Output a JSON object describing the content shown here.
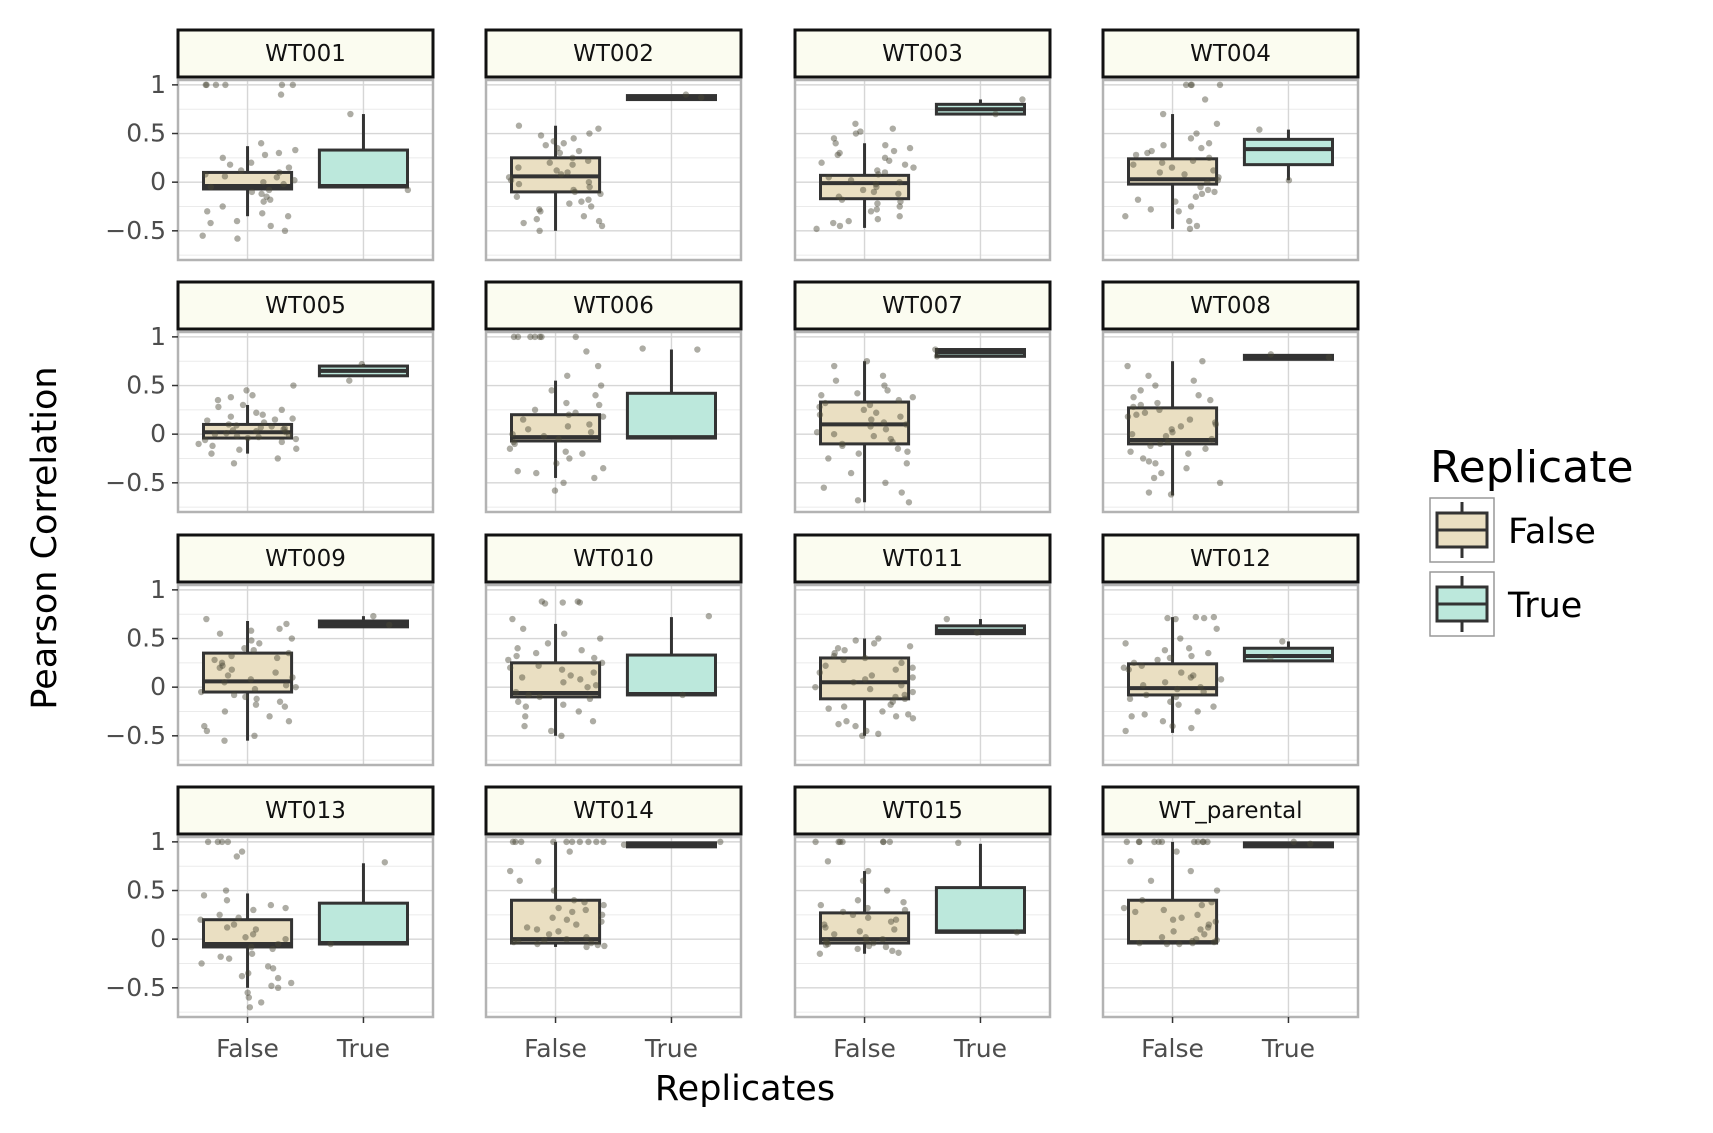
{
  "chart_data": {
    "type": "boxplot-faceted",
    "xlabel": "Replicates",
    "ylabel": "Pearson Correlation",
    "categories": [
      "False",
      "True"
    ],
    "ylim": [
      -0.8,
      1.05
    ],
    "yticks": [
      -0.5,
      0,
      0.5,
      1
    ],
    "ytick_labels": [
      "−0.5",
      "0",
      "0.5",
      "1"
    ],
    "legend": {
      "title": "Replicate",
      "position": "right",
      "entries": [
        {
          "label": "False",
          "color": "#eadfc2"
        },
        {
          "label": "True",
          "color": "#bce8dc"
        }
      ]
    },
    "colors": {
      "false_fill": "#eadfc2",
      "true_fill": "#bce8dc",
      "strip_fill": "#fbfcf0",
      "box_stroke": "#333333",
      "point": "#4a4636",
      "grid": "#d6d6d6",
      "panel_border": "#b3b3b3"
    },
    "facets": [
      {
        "name": "WT001",
        "false": {
          "whisker_low": -0.35,
          "q1": -0.07,
          "median": -0.04,
          "q3": 0.1,
          "whisker_high": 0.37,
          "points": [
            1,
            1,
            1,
            1,
            1,
            1,
            0.9,
            0.4,
            0.3,
            0.25,
            0.2,
            0.15,
            0.1,
            0.08,
            0.05,
            0.02,
            0,
            -0.02,
            -0.05,
            -0.08,
            -0.1,
            -0.15,
            -0.2,
            -0.25,
            -0.3,
            -0.35,
            -0.4,
            -0.45,
            -0.5,
            -0.58,
            -0.55,
            0.33,
            0.28,
            0.12,
            -0.12,
            -0.32,
            0.18,
            0.06,
            -0.18,
            -0.42
          ]
        },
        "true": {
          "whisker_low": -0.05,
          "q1": -0.05,
          "median": -0.04,
          "q3": 0.33,
          "whisker_high": 0.7,
          "points": [
            0.7,
            -0.08
          ]
        }
      },
      {
        "name": "WT002",
        "false": {
          "whisker_low": -0.5,
          "q1": -0.1,
          "median": 0.06,
          "q3": 0.25,
          "whisker_high": 0.58,
          "points": [
            0.58,
            0.55,
            0.5,
            0.45,
            0.4,
            0.35,
            0.3,
            0.25,
            0.2,
            0.15,
            0.1,
            0.05,
            0,
            -0.05,
            -0.1,
            -0.15,
            -0.2,
            -0.25,
            -0.3,
            -0.35,
            -0.4,
            -0.45,
            -0.5,
            0.48,
            0.38,
            0.22,
            0.12,
            0.02,
            -0.08,
            -0.18,
            -0.28,
            -0.38,
            0.32,
            0.18,
            -0.02,
            -0.22,
            0.42,
            0.08,
            -0.12,
            -0.42
          ]
        },
        "true": {
          "whisker_low": 0.87,
          "q1": 0.87,
          "median": 0.88,
          "q3": 0.89,
          "whisker_high": 0.9,
          "points": [
            0.9,
            0.87
          ]
        }
      },
      {
        "name": "WT003",
        "false": {
          "whisker_low": -0.47,
          "q1": -0.17,
          "median": -0.01,
          "q3": 0.07,
          "whisker_high": 0.4,
          "points": [
            0.6,
            0.55,
            0.5,
            0.45,
            0.4,
            0.35,
            0.3,
            0.25,
            0.2,
            0.15,
            0.1,
            0.05,
            0,
            -0.05,
            -0.1,
            -0.15,
            -0.2,
            -0.25,
            -0.3,
            -0.35,
            -0.4,
            -0.45,
            -0.48,
            0.52,
            0.38,
            0.22,
            0.12,
            0.02,
            -0.08,
            -0.18,
            -0.28,
            -0.38,
            0.32,
            0.18,
            -0.02,
            -0.22,
            0.08,
            -0.12,
            -0.42,
            0.28
          ]
        },
        "true": {
          "whisker_low": 0.7,
          "q1": 0.7,
          "median": 0.75,
          "q3": 0.8,
          "whisker_high": 0.85,
          "points": [
            0.85,
            0.7
          ]
        }
      },
      {
        "name": "WT004",
        "false": {
          "whisker_low": -0.48,
          "q1": -0.02,
          "median": 0.03,
          "q3": 0.24,
          "whisker_high": 0.7,
          "points": [
            1,
            1,
            1,
            1,
            0.85,
            0.7,
            0.6,
            0.5,
            0.45,
            0.4,
            0.35,
            0.3,
            0.25,
            0.2,
            0.15,
            0.1,
            0.05,
            0,
            -0.05,
            -0.1,
            -0.15,
            -0.2,
            -0.25,
            -0.3,
            -0.35,
            -0.4,
            -0.45,
            -0.48,
            0.32,
            0.22,
            0.12,
            0.02,
            -0.08,
            -0.18,
            0.18,
            0.08,
            -0.12,
            0.28,
            0.38,
            -0.28
          ]
        },
        "true": {
          "whisker_low": 0.02,
          "q1": 0.18,
          "median": 0.34,
          "q3": 0.44,
          "whisker_high": 0.54,
          "points": [
            0.54,
            0.02
          ]
        }
      },
      {
        "name": "WT005",
        "false": {
          "whisker_low": -0.2,
          "q1": -0.04,
          "median": 0.02,
          "q3": 0.1,
          "whisker_high": 0.3,
          "points": [
            0.5,
            0.45,
            0.4,
            0.35,
            0.3,
            0.25,
            0.2,
            0.15,
            0.1,
            0.08,
            0.06,
            0.04,
            0.02,
            0,
            -0.02,
            -0.04,
            -0.06,
            -0.08,
            -0.1,
            -0.15,
            -0.2,
            -0.25,
            -0.3,
            0.12,
            0.18,
            0.22,
            0.05,
            -0.05,
            0.14,
            -0.12,
            0.28,
            0.01,
            -0.01,
            0.09,
            0.03,
            -0.03,
            0.16,
            -0.16,
            0.07,
            0.38
          ]
        },
        "true": {
          "whisker_low": 0.6,
          "q1": 0.6,
          "median": 0.65,
          "q3": 0.7,
          "whisker_high": 0.72,
          "points": [
            0.72,
            0.55
          ]
        }
      },
      {
        "name": "WT006",
        "false": {
          "whisker_low": -0.45,
          "q1": -0.07,
          "median": -0.03,
          "q3": 0.2,
          "whisker_high": 0.55,
          "points": [
            1,
            1,
            1,
            1,
            1,
            1,
            1,
            0.85,
            0.7,
            0.6,
            0.5,
            0.45,
            0.4,
            0.3,
            0.25,
            0.2,
            0.15,
            0.1,
            0.05,
            0,
            -0.05,
            -0.1,
            -0.15,
            -0.2,
            -0.25,
            -0.3,
            -0.35,
            -0.4,
            -0.45,
            -0.5,
            -0.58,
            0.32,
            0.18,
            0.08,
            -0.08,
            -0.18,
            -0.38,
            0.22,
            0.02,
            -0.02
          ]
        },
        "true": {
          "whisker_low": -0.04,
          "q1": -0.04,
          "median": -0.03,
          "q3": 0.42,
          "whisker_high": 0.87,
          "points": [
            0.87,
            0.88
          ]
        }
      },
      {
        "name": "WT007",
        "false": {
          "whisker_low": -0.7,
          "q1": -0.1,
          "median": 0.1,
          "q3": 0.33,
          "whisker_high": 0.75,
          "points": [
            0.75,
            0.7,
            0.6,
            0.55,
            0.5,
            0.45,
            0.4,
            0.35,
            0.3,
            0.25,
            0.2,
            0.15,
            0.1,
            0.05,
            0,
            -0.05,
            -0.1,
            -0.15,
            -0.2,
            -0.25,
            -0.3,
            -0.4,
            -0.5,
            -0.6,
            -0.7,
            0.42,
            0.32,
            0.22,
            0.12,
            0.02,
            -0.08,
            -0.18,
            0.28,
            0.18,
            0.08,
            -0.02,
            -0.12,
            0.38,
            -0.55,
            -0.68
          ]
        },
        "true": {
          "whisker_low": 0.8,
          "q1": 0.8,
          "median": 0.84,
          "q3": 0.87,
          "whisker_high": 0.87,
          "points": [
            0.87,
            0.8
          ]
        }
      },
      {
        "name": "WT008",
        "false": {
          "whisker_low": -0.63,
          "q1": -0.1,
          "median": -0.06,
          "q3": 0.27,
          "whisker_high": 0.75,
          "points": [
            0.75,
            0.7,
            0.6,
            0.55,
            0.5,
            0.45,
            0.4,
            0.35,
            0.3,
            0.25,
            0.2,
            0.15,
            0.1,
            0.05,
            0,
            -0.05,
            -0.1,
            -0.15,
            -0.2,
            -0.25,
            -0.3,
            -0.35,
            -0.4,
            -0.5,
            -0.6,
            0.32,
            0.22,
            0.12,
            0.02,
            -0.08,
            -0.18,
            -0.28,
            0.38,
            0.28,
            0.18,
            0.08,
            -0.02,
            -0.12,
            -0.45,
            -0.62
          ]
        },
        "true": {
          "whisker_low": 0.78,
          "q1": 0.78,
          "median": 0.8,
          "q3": 0.81,
          "whisker_high": 0.82,
          "points": [
            0.82,
            0.79
          ]
        }
      },
      {
        "name": "WT009",
        "false": {
          "whisker_low": -0.55,
          "q1": -0.05,
          "median": 0.06,
          "q3": 0.35,
          "whisker_high": 0.68,
          "points": [
            0.7,
            0.65,
            0.6,
            0.55,
            0.5,
            0.45,
            0.4,
            0.35,
            0.3,
            0.25,
            0.2,
            0.15,
            0.1,
            0.05,
            0,
            -0.05,
            -0.1,
            -0.15,
            -0.2,
            -0.25,
            -0.3,
            -0.35,
            -0.4,
            -0.45,
            -0.5,
            -0.55,
            0.32,
            0.22,
            0.12,
            0.02,
            -0.08,
            -0.18,
            0.28,
            0.18,
            0.08,
            -0.02,
            -0.12,
            0.38,
            0.48,
            0.58
          ]
        },
        "true": {
          "whisker_low": 0.62,
          "q1": 0.62,
          "median": 0.65,
          "q3": 0.68,
          "whisker_high": 0.73,
          "points": [
            0.73,
            0.64
          ]
        }
      },
      {
        "name": "WT010",
        "false": {
          "whisker_low": -0.5,
          "q1": -0.1,
          "median": -0.06,
          "q3": 0.25,
          "whisker_high": 0.65,
          "points": [
            0.88,
            0.87,
            0.86,
            0.88,
            0.87,
            0.7,
            0.6,
            0.5,
            0.45,
            0.4,
            0.35,
            0.3,
            0.25,
            0.2,
            0.15,
            0.1,
            0.05,
            0,
            -0.05,
            -0.1,
            -0.15,
            -0.2,
            -0.25,
            -0.3,
            -0.35,
            -0.4,
            -0.45,
            -0.5,
            0.32,
            0.22,
            0.12,
            0.02,
            -0.08,
            -0.18,
            0.28,
            0.18,
            0.08,
            -0.12,
            0.38,
            0.55
          ]
        },
        "true": {
          "whisker_low": -0.08,
          "q1": -0.08,
          "median": -0.07,
          "q3": 0.33,
          "whisker_high": 0.72,
          "points": [
            0.73,
            -0.08
          ]
        }
      },
      {
        "name": "WT011",
        "false": {
          "whisker_low": -0.5,
          "q1": -0.12,
          "median": 0.05,
          "q3": 0.3,
          "whisker_high": 0.5,
          "points": [
            0.5,
            0.45,
            0.42,
            0.4,
            0.35,
            0.3,
            0.25,
            0.2,
            0.15,
            0.1,
            0.05,
            0,
            -0.05,
            -0.1,
            -0.15,
            -0.2,
            -0.25,
            -0.3,
            -0.35,
            -0.4,
            -0.45,
            -0.5,
            0.48,
            0.38,
            0.32,
            0.22,
            0.12,
            0.02,
            -0.08,
            -0.18,
            -0.28,
            -0.38,
            0.28,
            0.18,
            0.08,
            -0.02,
            -0.12,
            -0.22,
            -0.32,
            -0.48
          ]
        },
        "true": {
          "whisker_low": 0.55,
          "q1": 0.55,
          "median": 0.58,
          "q3": 0.63,
          "whisker_high": 0.7,
          "points": [
            0.7,
            0.56
          ]
        }
      },
      {
        "name": "WT012",
        "false": {
          "whisker_low": -0.47,
          "q1": -0.08,
          "median": -0.01,
          "q3": 0.24,
          "whisker_high": 0.72,
          "points": [
            0.72,
            0.71,
            0.7,
            0.72,
            0.71,
            0.6,
            0.5,
            0.45,
            0.4,
            0.35,
            0.3,
            0.25,
            0.2,
            0.15,
            0.1,
            0.05,
            0,
            -0.05,
            -0.1,
            -0.15,
            -0.2,
            -0.25,
            -0.3,
            -0.35,
            -0.4,
            -0.45,
            0.32,
            0.22,
            0.12,
            0.02,
            -0.08,
            -0.18,
            0.28,
            0.18,
            0.08,
            -0.02,
            -0.12,
            0.38,
            -0.28,
            -0.42
          ]
        },
        "true": {
          "whisker_low": 0.27,
          "q1": 0.27,
          "median": 0.32,
          "q3": 0.4,
          "whisker_high": 0.47,
          "points": [
            0.47,
            0.3
          ]
        }
      },
      {
        "name": "WT013",
        "false": {
          "whisker_low": -0.5,
          "q1": -0.08,
          "median": -0.05,
          "q3": 0.2,
          "whisker_high": 0.47,
          "points": [
            1,
            1,
            1,
            1,
            0.9,
            0.85,
            0.5,
            0.45,
            0.4,
            0.35,
            0.3,
            0.25,
            0.2,
            0.15,
            0.1,
            0.05,
            0,
            -0.05,
            -0.1,
            -0.15,
            -0.2,
            -0.25,
            -0.3,
            -0.35,
            -0.4,
            -0.45,
            -0.5,
            -0.55,
            -0.6,
            -0.65,
            -0.7,
            0.32,
            0.22,
            0.12,
            0.02,
            -0.08,
            -0.18,
            -0.28,
            -0.38,
            -0.48
          ]
        },
        "true": {
          "whisker_low": -0.05,
          "q1": -0.05,
          "median": -0.04,
          "q3": 0.37,
          "whisker_high": 0.78,
          "points": [
            0.79,
            -0.05
          ]
        }
      },
      {
        "name": "WT014",
        "false": {
          "whisker_low": -0.08,
          "q1": -0.04,
          "median": 0.0,
          "q3": 0.4,
          "whisker_high": 1.0,
          "points": [
            1,
            1,
            1,
            1,
            1,
            1,
            1,
            1,
            1,
            1,
            0.9,
            0.8,
            0.7,
            0.6,
            0.5,
            0.4,
            0.35,
            0.3,
            0.25,
            0.2,
            0.15,
            0.1,
            0.05,
            0,
            -0.02,
            -0.04,
            -0.06,
            -0.08,
            -0.05,
            -0.03,
            0.02,
            0.12,
            0.22,
            0.32,
            0.18,
            0.08,
            -0.01,
            -0.07,
            0.28,
            0.38
          ]
        },
        "true": {
          "whisker_low": 0.97,
          "q1": 0.97,
          "median": 0.98,
          "q3": 0.99,
          "whisker_high": 1.0,
          "points": [
            1,
            0.97
          ]
        }
      },
      {
        "name": "WT015",
        "false": {
          "whisker_low": -0.15,
          "q1": -0.04,
          "median": 0.0,
          "q3": 0.27,
          "whisker_high": 0.7,
          "points": [
            1,
            1,
            1,
            1,
            1,
            1,
            1,
            0.8,
            0.7,
            0.6,
            0.5,
            0.4,
            0.35,
            0.3,
            0.25,
            0.2,
            0.15,
            0.1,
            0.05,
            0,
            -0.02,
            -0.04,
            -0.06,
            -0.08,
            -0.1,
            -0.12,
            -0.15,
            -0.05,
            -0.03,
            0.02,
            0.12,
            0.22,
            0.32,
            0.18,
            0.08,
            -0.01,
            -0.07,
            0.28,
            0.38,
            -0.14
          ]
        },
        "true": {
          "whisker_low": 0.07,
          "q1": 0.07,
          "median": 0.08,
          "q3": 0.53,
          "whisker_high": 0.98,
          "points": [
            0.99,
            0.07
          ]
        }
      },
      {
        "name": "WT_parental",
        "false": {
          "whisker_low": -0.05,
          "q1": -0.04,
          "median": -0.03,
          "q3": 0.4,
          "whisker_high": 1.0,
          "points": [
            1,
            1,
            1,
            1,
            1,
            1,
            1,
            1,
            1,
            1,
            1,
            0.9,
            0.8,
            0.7,
            0.6,
            0.5,
            0.4,
            0.35,
            0.3,
            0.25,
            0.2,
            0.15,
            0.1,
            0.05,
            0,
            -0.02,
            -0.04,
            -0.05,
            -0.03,
            -0.01,
            0.02,
            0.12,
            0.22,
            0.32,
            0.18,
            0.08,
            -0.04,
            -0.05,
            0.28,
            0.38
          ]
        },
        "true": {
          "whisker_low": 0.97,
          "q1": 0.97,
          "median": 0.98,
          "q3": 0.99,
          "whisker_high": 1.0,
          "points": [
            1,
            0.98
          ]
        }
      }
    ]
  }
}
